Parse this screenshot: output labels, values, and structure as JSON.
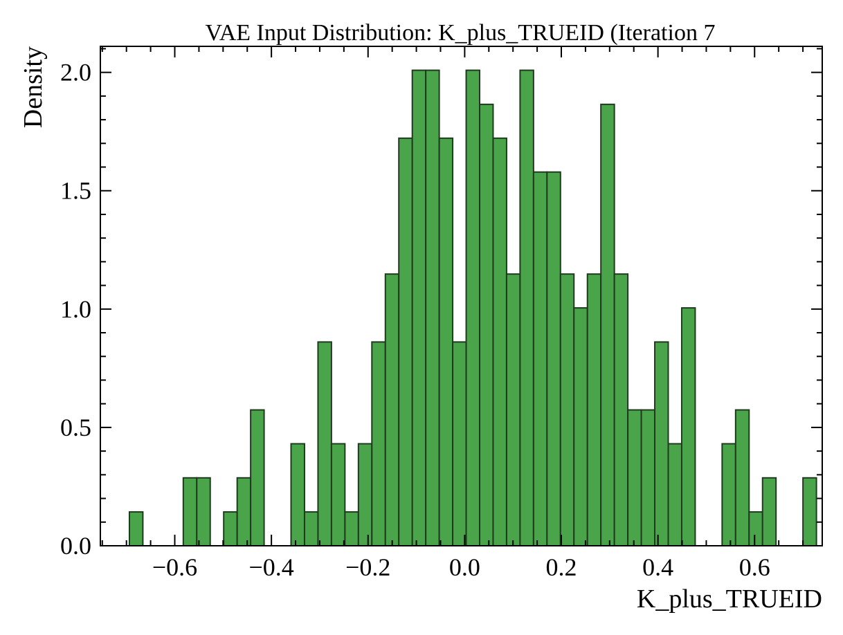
{
  "chart_data": {
    "type": "bar",
    "title": "VAE Input Distribution: K_plus_TRUEID (Iteration 7",
    "xlabel": "K_plus_TRUEID",
    "ylabel": "Density",
    "xlim": [
      -0.754,
      0.74
    ],
    "ylim": [
      0,
      2.11
    ],
    "x_ticks": [
      -0.6,
      -0.4,
      -0.2,
      0.0,
      0.2,
      0.4,
      0.6
    ],
    "x_tick_labels": [
      "−0.6",
      "−0.4",
      "−0.2",
      "0.0",
      "0.2",
      "0.4",
      "0.6"
    ],
    "y_ticks": [
      0.0,
      0.5,
      1.0,
      1.5,
      2.0
    ],
    "y_tick_labels": [
      "0.0",
      "0.5",
      "1.0",
      "1.5",
      "2.0"
    ],
    "bin_start": -0.6939,
    "bin_width": 0.02788,
    "values": [
      0.143,
      0,
      0,
      0,
      0.287,
      0.287,
      0,
      0.143,
      0.287,
      0.574,
      0,
      0,
      0.431,
      0.143,
      0.861,
      0.431,
      0.143,
      0.431,
      0.861,
      1.148,
      1.722,
      2.009,
      2.009,
      1.722,
      0.861,
      2.009,
      1.865,
      1.722,
      1.148,
      2.009,
      1.579,
      1.579,
      1.148,
      1.005,
      1.148,
      1.865,
      1.148,
      0.574,
      0.574,
      0.861,
      0.431,
      1.005,
      0,
      0,
      0.431,
      0.574,
      0.143,
      0.287,
      0,
      0,
      0.287
    ],
    "bar_color": "#4aa54a",
    "edge_color": "#1f3a1f",
    "grid": false
  }
}
